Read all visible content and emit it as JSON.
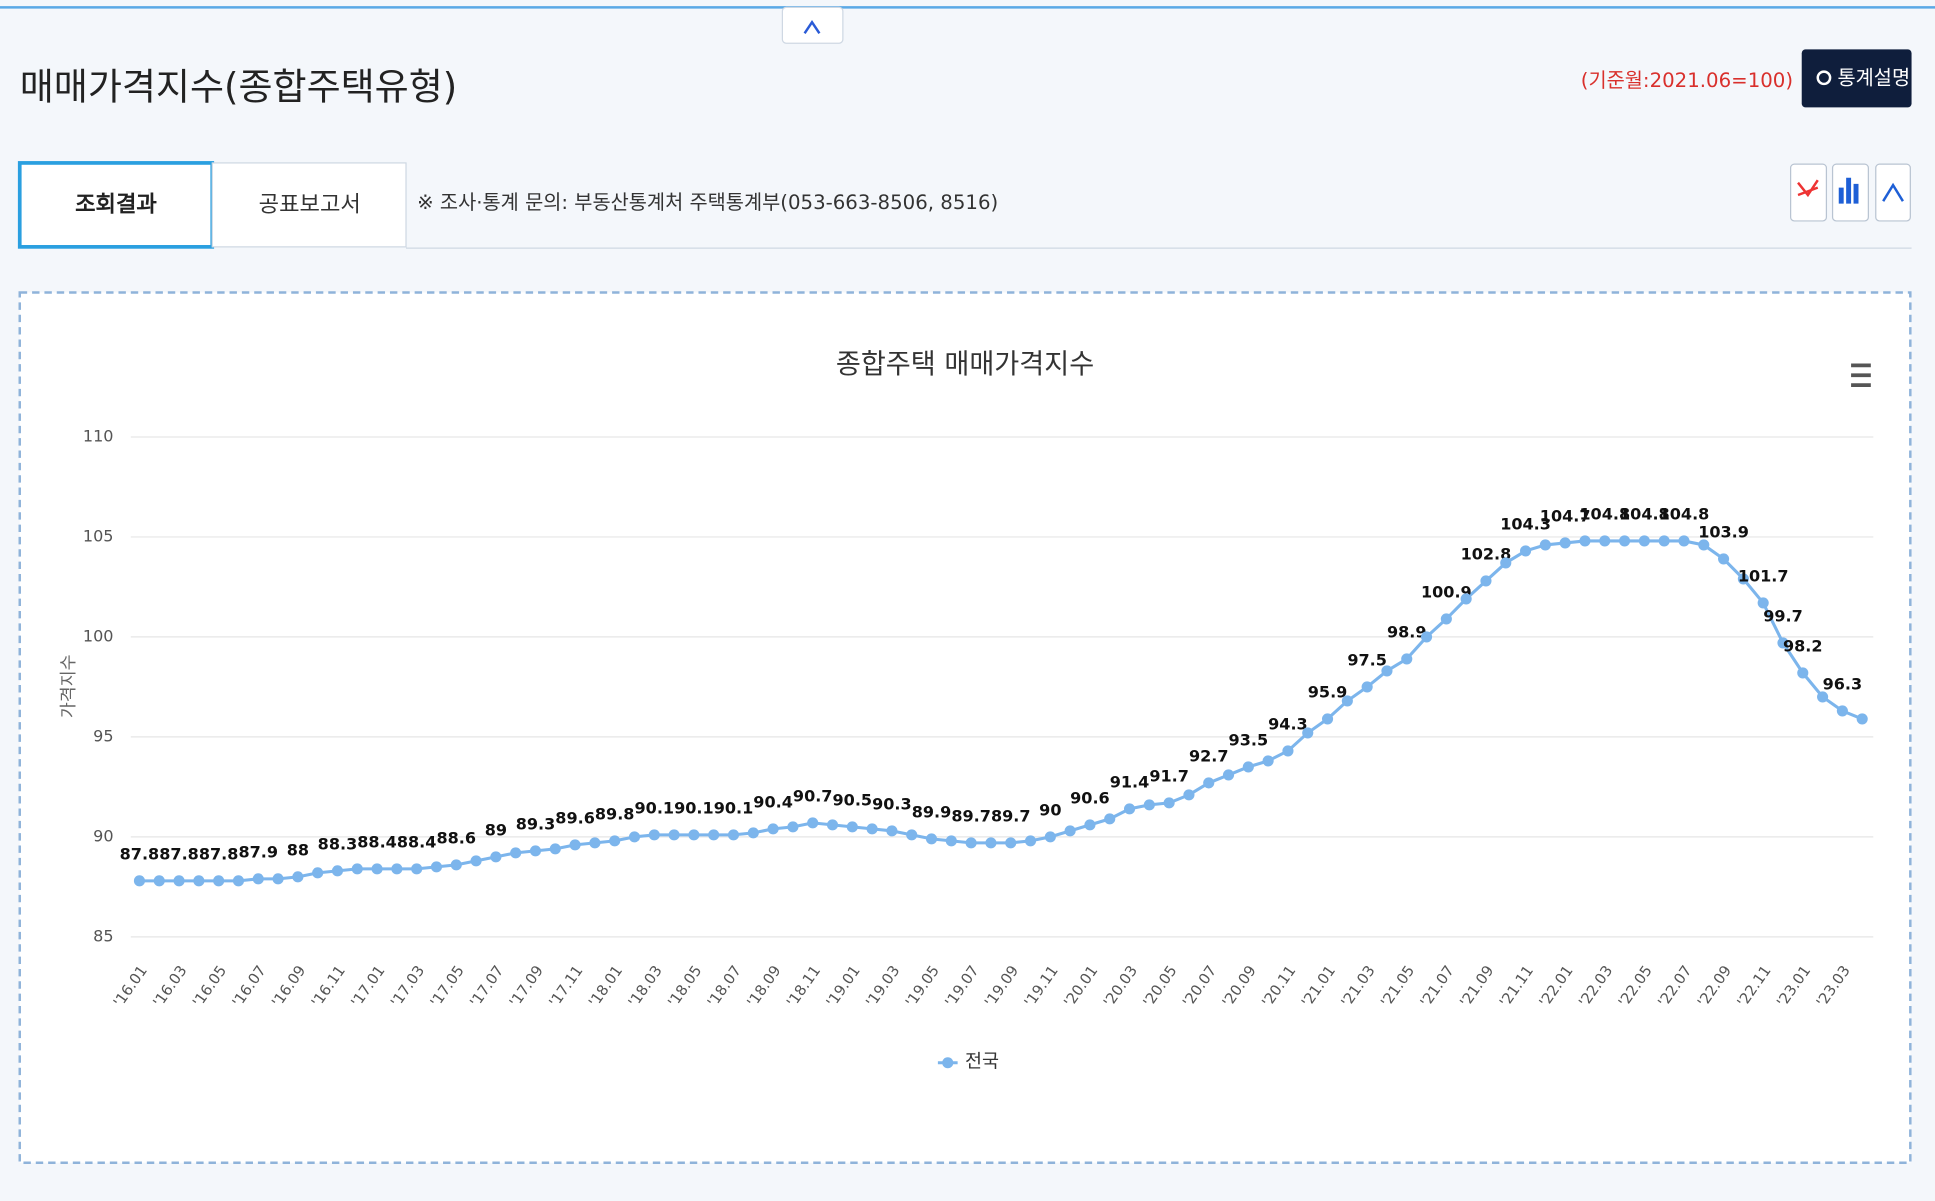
{
  "header": {
    "title": "매매가격지수(종합주택유형)",
    "base_note": "(기준월:2021.06=100)",
    "button": "통계설명"
  },
  "tabs": [
    "조회결과",
    "공표보고서"
  ],
  "contact": "※ 조사·통계 문의: 부동산통계처 주택통계부(053-663-8506, 8516)",
  "chart_data": {
    "type": "line",
    "title": "종합주택 매매가격지수",
    "y_label": "가격지수",
    "categories": [
      "'16.01",
      null,
      "'16.03",
      null,
      "'16.05",
      null,
      "'16.07",
      null,
      "'16.09",
      null,
      "'16.11",
      null,
      "'17.01",
      null,
      "'17.03",
      null,
      "'17.05",
      null,
      "'17.07",
      null,
      "'17.09",
      null,
      "'17.11",
      null,
      "'18.01",
      null,
      "'18.03",
      null,
      "'18.05",
      null,
      "'18.07",
      null,
      "'18.09",
      null,
      "'18.11",
      null,
      "'19.01",
      null,
      "'19.03",
      null,
      "'19.05",
      null,
      "'19.07",
      null,
      "'19.09",
      null,
      "'19.11",
      null,
      "'20.01",
      null,
      "'20.03",
      null,
      "'20.05",
      null,
      "'20.07",
      null,
      "'20.09",
      null,
      "'20.11",
      null,
      "'21.01",
      null,
      "'21.03",
      null,
      "'21.05",
      null,
      "'21.07",
      null,
      "'21.09",
      null,
      "'21.11",
      null,
      "'22.01",
      null,
      "'22.03",
      null,
      "'22.05",
      null,
      "'22.07",
      null,
      "'22.09",
      null,
      "'22.11",
      null,
      "'23.01",
      null,
      "'23.03",
      null
    ],
    "series": [
      {
        "name": "전국",
        "color": "#7cb5ec",
        "values": [
          87.8,
          87.8,
          87.8,
          87.8,
          87.8,
          87.8,
          87.9,
          87.9,
          88,
          88.2,
          88.3,
          88.4,
          88.4,
          88.4,
          88.4,
          88.5,
          88.6,
          88.8,
          89,
          89.2,
          89.3,
          89.4,
          89.6,
          89.7,
          89.8,
          90,
          90.1,
          90.1,
          90.1,
          90.1,
          90.1,
          90.2,
          90.4,
          90.5,
          90.7,
          90.6,
          90.5,
          90.4,
          90.3,
          90.1,
          89.9,
          89.8,
          89.7,
          89.7,
          89.7,
          89.8,
          90,
          90.3,
          90.6,
          90.9,
          91.4,
          91.6,
          91.7,
          92.1,
          92.7,
          93.1,
          93.5,
          93.8,
          94.3,
          95.2,
          95.9,
          96.8,
          97.5,
          98.3,
          98.9,
          100,
          100.9,
          101.9,
          102.8,
          103.7,
          104.3,
          104.6,
          104.7,
          104.8,
          104.8,
          104.8,
          104.8,
          104.8,
          104.8,
          104.6,
          103.9,
          102.9,
          101.7,
          99.7,
          98.2,
          97,
          96.3,
          95.9
        ],
        "value_labels": [
          "87.8",
          null,
          "87.8",
          null,
          "87.8",
          null,
          "87.9",
          null,
          "88",
          null,
          "88.3",
          null,
          "88.4",
          null,
          "88.4",
          null,
          "88.6",
          null,
          "89",
          null,
          "89.3",
          null,
          "89.6",
          null,
          "89.8",
          null,
          "90.1",
          null,
          "90.1",
          null,
          "90.1",
          null,
          "90.4",
          null,
          "90.7",
          null,
          "90.5",
          null,
          "90.3",
          null,
          "89.9",
          null,
          "89.7",
          null,
          "89.7",
          null,
          "90",
          null,
          "90.6",
          null,
          "91.4",
          null,
          "91.7",
          null,
          "92.7",
          null,
          "93.5",
          null,
          "94.3",
          null,
          "95.9",
          null,
          "97.5",
          null,
          "98.9",
          null,
          "100.9",
          null,
          "102.8",
          null,
          "104.3",
          null,
          "104.7",
          null,
          "104.8",
          null,
          "104.8",
          null,
          "104.8",
          null,
          "103.9",
          null,
          "101.7",
          "99.7",
          "98.2",
          null,
          "96.3",
          null
        ]
      }
    ],
    "ylim": [
      85,
      110
    ],
    "yticks": [
      85,
      90,
      95,
      100,
      105,
      110
    ],
    "grid": true
  }
}
